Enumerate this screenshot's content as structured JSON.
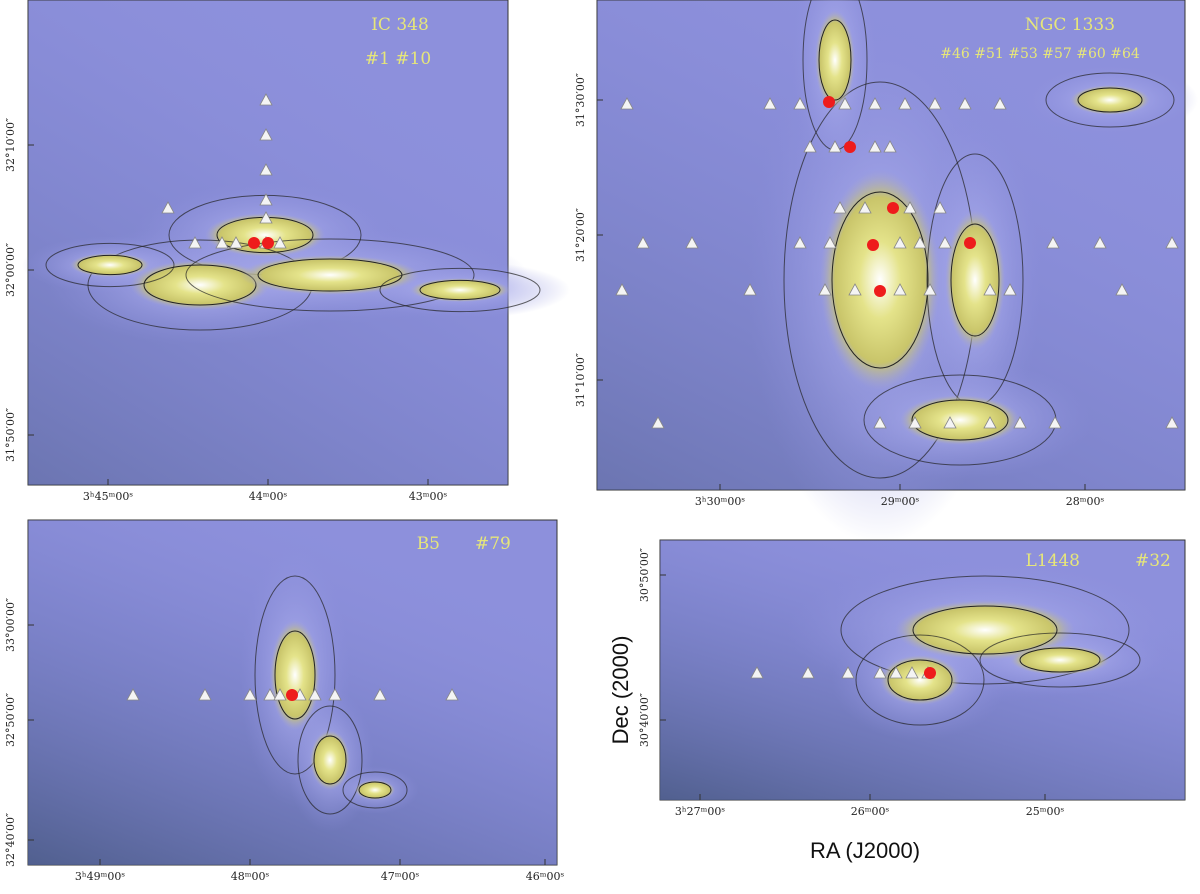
{
  "panels": [
    {
      "title": "IC 348",
      "markers": "#1    #10",
      "x_ticks": [
        "3ʰ45ᵐ00ˢ",
        "44ᵐ00ˢ",
        "43ᵐ00ˢ"
      ],
      "y_ticks": [
        "32°10′00″",
        "32°00′00″",
        "31°50′00″"
      ]
    },
    {
      "title": "NGC 1333",
      "markers": "#46 #51 #53 #57 #60 #64",
      "x_ticks": [
        "3ʰ30ᵐ00ˢ",
        "29ᵐ00ˢ",
        "28ᵐ00ˢ"
      ],
      "y_ticks": [
        "31°30′00″",
        "31°20′00″",
        "31°10′00″"
      ]
    },
    {
      "title": "B5",
      "markers": "#79",
      "x_ticks": [
        "3ʰ49ᵐ00ˢ",
        "48ᵐ00ˢ",
        "47ᵐ00ˢ",
        "46ᵐ00ˢ"
      ],
      "y_ticks": [
        "33°00′00″",
        "32°50′00″",
        "32°40′00″"
      ]
    },
    {
      "title": "L1448",
      "markers": "#32",
      "x_ticks": [
        "3ʰ27ᵐ00ˢ",
        "26ᵐ00ˢ",
        "25ᵐ00ˢ"
      ],
      "y_ticks": [
        "30°50′00″",
        "30°40′00″"
      ]
    }
  ],
  "y_axis_label": "Dec (2000)",
  "x_axis_label": "RA (J2000)"
}
